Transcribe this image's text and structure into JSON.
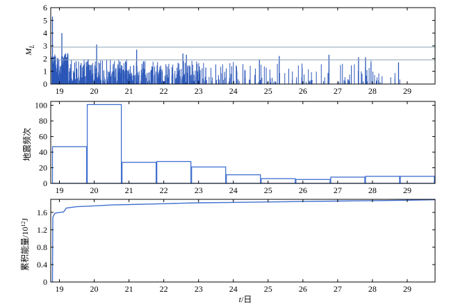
{
  "colors": {
    "bar": "#2b57b8",
    "line": "#3f6fcf",
    "threshold": "#8aa2b4",
    "frame": "#000000"
  },
  "chart_data": [
    {
      "type": "bar",
      "ylabel": "M",
      "ylabel_sub": "L",
      "ylim": [
        0,
        6
      ],
      "xlim": [
        18.75,
        29.8
      ],
      "yticks": [
        "0",
        "1",
        "2",
        "3",
        "4",
        "5",
        "6"
      ],
      "xticks": [
        "19",
        "20",
        "21",
        "22",
        "23",
        "24",
        "25",
        "26",
        "27",
        "28",
        "29"
      ],
      "xtick_values": [
        19,
        20,
        21,
        22,
        23,
        24,
        25,
        26,
        27,
        28,
        29
      ],
      "thresholds": [
        2.9,
        1.9
      ],
      "highlighted_events": [
        {
          "t": 18.8,
          "m": 5.3
        },
        {
          "t": 19.07,
          "m": 4.0
        },
        {
          "t": 20.07,
          "m": 3.1
        },
        {
          "t": 21.22,
          "m": 2.7
        },
        {
          "t": 22.55,
          "m": 2.4
        },
        {
          "t": 22.65,
          "m": 2.3
        },
        {
          "t": 24.75,
          "m": 1.9
        },
        {
          "t": 25.32,
          "m": 2.2
        },
        {
          "t": 26.75,
          "m": 2.3
        },
        {
          "t": 27.6,
          "m": 2.1
        },
        {
          "t": 27.8,
          "m": 2.1
        },
        {
          "t": 28.75,
          "m": 1.7
        }
      ]
    },
    {
      "type": "bar",
      "ylabel": "地震频次",
      "ylim": [
        0,
        100
      ],
      "yticks": [
        "0",
        "20",
        "40",
        "60",
        "80",
        "100"
      ],
      "xticks": [
        "19",
        "20",
        "21",
        "22",
        "23",
        "24",
        "25",
        "26",
        "27",
        "28",
        "29"
      ],
      "categories": [
        "19",
        "20",
        "21",
        "22",
        "23",
        "24",
        "25",
        "26",
        "27",
        "28",
        "29"
      ],
      "values": [
        47,
        101,
        27,
        28,
        21,
        11,
        6,
        5,
        8,
        9,
        9
      ]
    },
    {
      "type": "line",
      "ylabel": "累积能量/10",
      "ylabel_sup": "12",
      "ylabel_unit": "J",
      "xlabel": "t",
      "xlabel_unit": "/日",
      "ylim": [
        0,
        1.9
      ],
      "yticks": [
        "0",
        "0.4",
        "0.8",
        "1.2",
        "1.6"
      ],
      "ytick_values": [
        0,
        0.4,
        0.8,
        1.2,
        1.6
      ],
      "xticks": [
        "19",
        "20",
        "21",
        "22",
        "23",
        "24",
        "25",
        "26",
        "27",
        "28",
        "29"
      ],
      "series": [
        {
          "x": [
            18.8,
            18.81,
            18.87,
            19.0,
            19.12,
            19.2,
            19.5,
            20.0,
            20.5,
            21.0,
            21.5,
            22.0,
            22.5,
            23.0,
            24.0,
            25.0,
            26.0,
            27.0,
            28.0,
            29.0,
            29.8
          ],
          "y": [
            0,
            1.49,
            1.58,
            1.6,
            1.61,
            1.7,
            1.73,
            1.75,
            1.77,
            1.78,
            1.79,
            1.8,
            1.81,
            1.82,
            1.83,
            1.84,
            1.85,
            1.86,
            1.87,
            1.88,
            1.89
          ]
        }
      ]
    }
  ]
}
